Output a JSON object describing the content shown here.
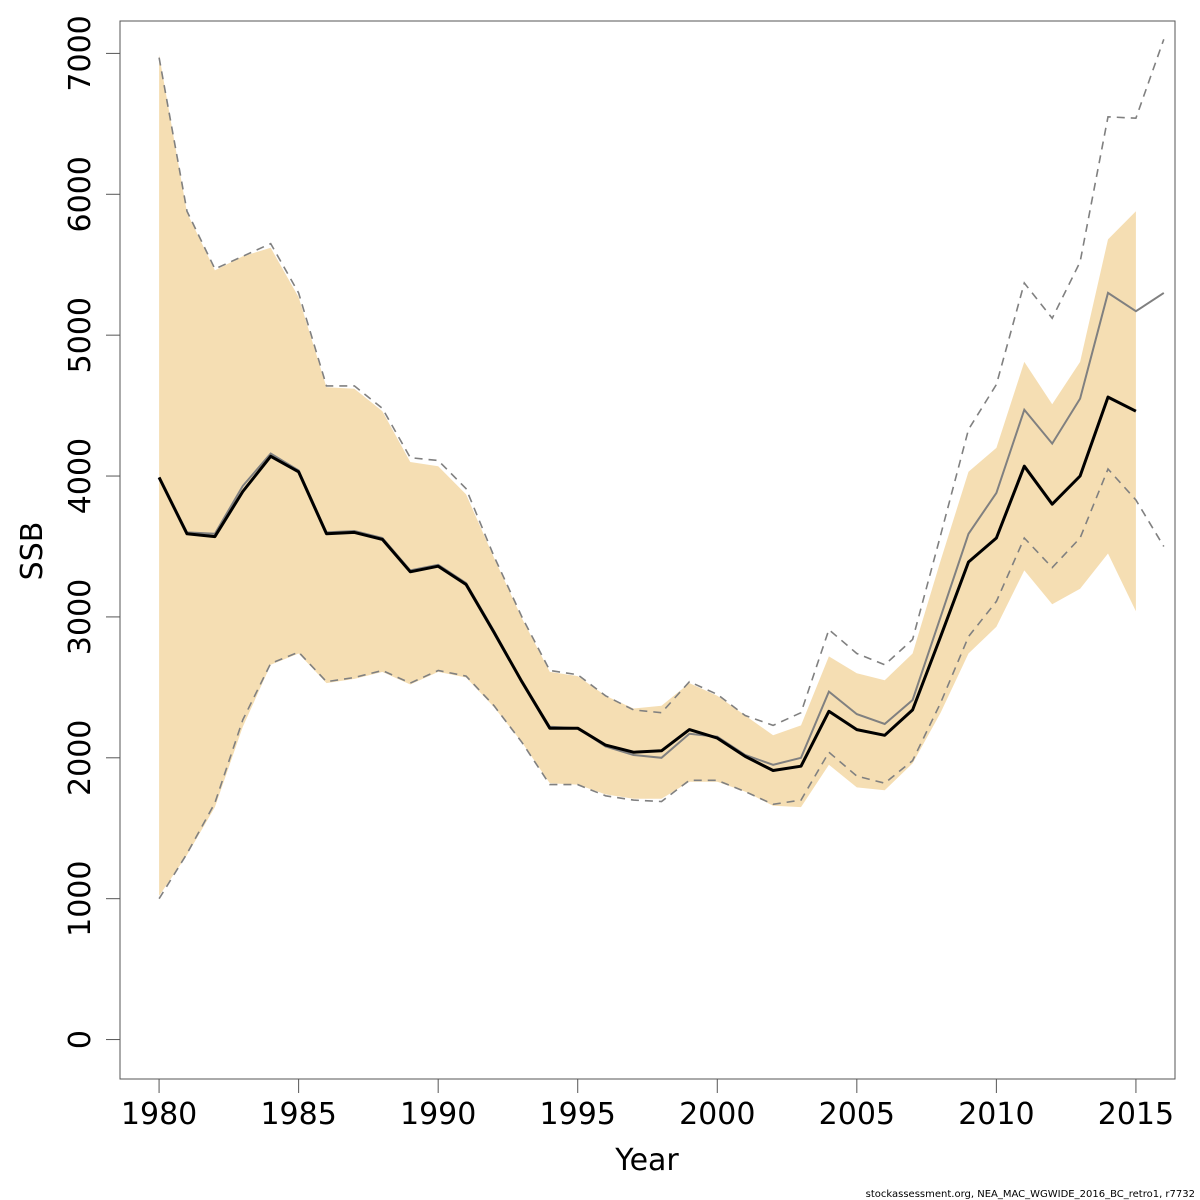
{
  "chart_data": {
    "type": "line",
    "xlabel": "Year",
    "ylabel": "SSB",
    "xlim": [
      1978.6,
      2016.4
    ],
    "ylim": [
      -280,
      7230
    ],
    "x_ticks": [
      1980,
      1985,
      1990,
      1995,
      2000,
      2005,
      2010,
      2015
    ],
    "y_ticks": [
      0,
      1000,
      2000,
      3000,
      4000,
      5000,
      6000,
      7000
    ],
    "grid": false,
    "legend": "none",
    "credit": "stockassessment.org, NEA_MAC_WGWIDE_2016_BC_retro1, r7732",
    "colors": {
      "band": "#f5deb3",
      "base_line": "#000000",
      "retro_line": "#808080",
      "retro_ci": "#808080"
    },
    "series": [
      {
        "role": "estimate",
        "x": [
          1980,
          1981,
          1982,
          1983,
          1984,
          1985,
          1986,
          1987,
          1988,
          1989,
          1990,
          1991,
          1992,
          1993,
          1994,
          1995,
          1996,
          1997,
          1998,
          1999,
          2000,
          2001,
          2002,
          2003,
          2004,
          2005,
          2006,
          2007,
          2008,
          2009,
          2010,
          2011,
          2012,
          2013,
          2014,
          2015
        ],
        "values": [
          3990,
          3590,
          3570,
          3890,
          4140,
          4030,
          3590,
          3600,
          3550,
          3320,
          3360,
          3230,
          2890,
          2540,
          2210,
          2210,
          2090,
          2040,
          2050,
          2200,
          2140,
          2010,
          1910,
          1940,
          2330,
          2200,
          2160,
          2340,
          2860,
          3390,
          3560,
          4070,
          3800,
          4000,
          4560,
          4460
        ]
      },
      {
        "role": "confidence band",
        "x": [
          1980,
          1981,
          1982,
          1983,
          1984,
          1985,
          1986,
          1987,
          1988,
          1989,
          1990,
          1991,
          1992,
          1993,
          1994,
          1995,
          1996,
          1997,
          1998,
          1999,
          2000,
          2001,
          2002,
          2003,
          2004,
          2005,
          2006,
          2007,
          2008,
          2009,
          2010,
          2011,
          2012,
          2013,
          2014,
          2015
        ],
        "lower": [
          1020,
          1310,
          1650,
          2220,
          2660,
          2740,
          2530,
          2560,
          2610,
          2520,
          2610,
          2570,
          2360,
          2110,
          1820,
          1810,
          1740,
          1710,
          1710,
          1830,
          1830,
          1760,
          1660,
          1650,
          1950,
          1790,
          1770,
          1960,
          2320,
          2740,
          2930,
          3330,
          3090,
          3200,
          3450,
          3040
        ],
        "upper": [
          6990,
          5870,
          5460,
          5560,
          5620,
          5270,
          4630,
          4620,
          4460,
          4100,
          4070,
          3870,
          3420,
          2990,
          2610,
          2580,
          2440,
          2350,
          2370,
          2530,
          2440,
          2300,
          2160,
          2230,
          2720,
          2600,
          2550,
          2740,
          3400,
          4030,
          4200,
          4810,
          4510,
          4810,
          5680,
          5880
        ]
      },
      {
        "role": "retrospective estimate",
        "x": [
          1980,
          1981,
          1982,
          1983,
          1984,
          1985,
          1986,
          1987,
          1988,
          1989,
          1990,
          1991,
          1992,
          1993,
          1994,
          1995,
          1996,
          1997,
          1998,
          1999,
          2000,
          2001,
          2002,
          2003,
          2004,
          2005,
          2006,
          2007,
          2008,
          2009,
          2010,
          2011,
          2012,
          2013,
          2014,
          2015,
          2016
        ],
        "values": [
          3990,
          3600,
          3590,
          3930,
          4160,
          4040,
          3600,
          3610,
          3560,
          3330,
          3370,
          3240,
          2900,
          2540,
          2220,
          2210,
          2080,
          2020,
          2000,
          2170,
          2150,
          2020,
          1950,
          2000,
          2470,
          2310,
          2240,
          2410,
          3000,
          3590,
          3880,
          4470,
          4230,
          4550,
          5300,
          5170,
          5300
        ]
      },
      {
        "role": "retrospective lower bound",
        "x": [
          1980,
          1981,
          1982,
          1983,
          1984,
          1985,
          1986,
          1987,
          1988,
          1989,
          1990,
          1991,
          1992,
          1993,
          1994,
          1995,
          1996,
          1997,
          1998,
          1999,
          2000,
          2001,
          2002,
          2003,
          2004,
          2005,
          2006,
          2007,
          2008,
          2009,
          2010,
          2011,
          2012,
          2013,
          2014,
          2015,
          2016
        ],
        "values": [
          1000,
          1320,
          1680,
          2270,
          2670,
          2750,
          2540,
          2570,
          2620,
          2530,
          2620,
          2580,
          2370,
          2110,
          1810,
          1810,
          1730,
          1700,
          1690,
          1840,
          1840,
          1760,
          1670,
          1700,
          2040,
          1870,
          1820,
          1980,
          2390,
          2860,
          3110,
          3560,
          3350,
          3560,
          4050,
          3830,
          3500
        ]
      },
      {
        "role": "retrospective upper bound",
        "x": [
          1980,
          1981,
          1982,
          1983,
          1984,
          1985,
          1986,
          1987,
          1988,
          1989,
          1990,
          1991,
          1992,
          1993,
          1994,
          1995,
          1996,
          1997,
          1998,
          1999,
          2000,
          2001,
          2002,
          2003,
          2004,
          2005,
          2006,
          2007,
          2008,
          2009,
          2010,
          2011,
          2012,
          2013,
          2014,
          2015,
          2016
        ],
        "values": [
          6970,
          5880,
          5470,
          5560,
          5650,
          5300,
          4640,
          4640,
          4480,
          4130,
          4110,
          3910,
          3430,
          3000,
          2620,
          2590,
          2440,
          2340,
          2320,
          2540,
          2450,
          2300,
          2230,
          2320,
          2910,
          2740,
          2660,
          2840,
          3580,
          4330,
          4650,
          5370,
          5120,
          5520,
          6550,
          6540,
          7100
        ]
      }
    ]
  }
}
